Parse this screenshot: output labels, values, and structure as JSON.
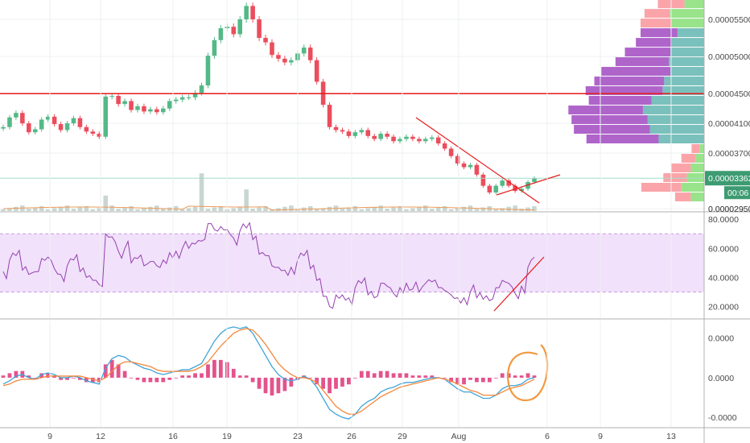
{
  "chart_data": [
    {
      "type": "candlestick",
      "panel": "price",
      "x_tick_labels": [
        "9",
        "12",
        "16",
        "19",
        "23",
        "26",
        "29",
        "Aug",
        "6",
        "9",
        "13"
      ],
      "y_ticks": [
        {
          "value": 5.5e-05,
          "label": "0.00005500"
        },
        {
          "value": 5e-05,
          "label": "0.00005000"
        },
        {
          "value": 4.5e-05,
          "label": "0.00004500"
        },
        {
          "value": 4.1e-05,
          "label": "0.00004100"
        },
        {
          "value": 3.7e-05,
          "label": "0.00003700"
        },
        {
          "value": 3.362e-05,
          "label": "0.00003362"
        },
        {
          "value": 2.95e-05,
          "label": "0.00002950"
        }
      ],
      "ylim": [
        2.92e-05,
        5.76e-05
      ],
      "last_price": {
        "value": 3.362e-05,
        "label": "0.00003362",
        "countdown": "00:06"
      },
      "horizontal_line": {
        "value": 4.5e-05,
        "color": "#e51b1b"
      },
      "close_series": [
        4.05e-05,
        4.18e-05,
        4.24e-05,
        4.1e-05,
        3.98e-05,
        4.02e-05,
        4.15e-05,
        4.19e-05,
        4.09e-05,
        4.01e-05,
        4.1e-05,
        4.17e-05,
        4.05e-05,
        3.99e-05,
        3.96e-05,
        3.92e-05,
        4.46e-05,
        4.47e-05,
        4.36e-05,
        4.4e-05,
        4.28e-05,
        4.33e-05,
        4.26e-05,
        4.29e-05,
        4.25e-05,
        4.3e-05,
        4.4e-05,
        4.42e-05,
        4.45e-05,
        4.45e-05,
        4.51e-05,
        4.61e-05,
        5.01e-05,
        5.22e-05,
        5.38e-05,
        5.4e-05,
        5.3e-05,
        5.5e-05,
        5.68e-05,
        5.5e-05,
        5.25e-05,
        5.19e-05,
        5.02e-05,
        4.97e-05,
        4.92e-05,
        4.95e-05,
        5.04e-05,
        5.12e-05,
        4.95e-05,
        4.66e-05,
        4.35e-05,
        4.05e-05,
        4.01e-05,
        3.99e-05,
        3.93e-05,
        3.98e-05,
        4.01e-05,
        3.93e-05,
        3.89e-05,
        3.96e-05,
        3.92e-05,
        3.86e-05,
        3.89e-05,
        3.92e-05,
        3.89e-05,
        3.86e-05,
        3.89e-05,
        3.91e-05,
        3.83e-05,
        3.76e-05,
        3.66e-05,
        3.56e-05,
        3.51e-05,
        3.54e-05,
        3.41e-05,
        3.26e-05,
        3.17e-05,
        3.26e-05,
        3.33e-05,
        3.26e-05,
        3.19e-05,
        3.22e-05,
        3.31e-05,
        3.36e-05
      ],
      "volume_profile": [
        {
          "price": 5.71e-05,
          "buy": 0.25,
          "sell": 0.34
        },
        {
          "price": 5.58e-05,
          "buy": 0.44,
          "sell": 0.32
        },
        {
          "price": 5.45e-05,
          "buy": 0.41,
          "sell": 0.4
        },
        {
          "price": 5.32e-05,
          "buy": 0.34,
          "sell": 0.47
        },
        {
          "price": 5.19e-05,
          "buy": 0.41,
          "sell": 0.46
        },
        {
          "price": 5.06e-05,
          "buy": 0.43,
          "sell": 0.58
        },
        {
          "price": 4.93e-05,
          "buy": 0.45,
          "sell": 0.68
        },
        {
          "price": 4.8e-05,
          "buy": 0.43,
          "sell": 0.88
        },
        {
          "price": 4.67e-05,
          "buy": 0.51,
          "sell": 0.89
        },
        {
          "price": 4.54e-05,
          "buy": 0.53,
          "sell": 0.98
        },
        {
          "price": 4.41e-05,
          "buy": 0.67,
          "sell": 0.8
        },
        {
          "price": 4.28e-05,
          "buy": 0.78,
          "sell": 0.95
        },
        {
          "price": 4.15e-05,
          "buy": 0.72,
          "sell": 0.97
        },
        {
          "price": 4.02e-05,
          "buy": 0.69,
          "sell": 0.97
        },
        {
          "price": 3.89e-05,
          "buy": 0.58,
          "sell": 0.92
        },
        {
          "price": 3.76e-05,
          "buy": 0.06,
          "sell": 0.1
        },
        {
          "price": 3.63e-05,
          "buy": 0.11,
          "sell": 0.18
        },
        {
          "price": 3.5e-05,
          "buy": 0.17,
          "sell": 0.25
        },
        {
          "price": 3.37e-05,
          "buy": 0.22,
          "sell": 0.3
        },
        {
          "price": 3.24e-05,
          "buy": 0.29,
          "sell": 0.51
        },
        {
          "price": 3.11e-05,
          "buy": 0.17,
          "sell": 0.2
        }
      ],
      "colors": {
        "up": "#53b987",
        "down": "#eb4d5c",
        "trendline": "#e51b1b",
        "volume": "#c8d6d0",
        "volume_ma": "#f09a5a",
        "profile_buy": "#6cb9b5",
        "profile_sell": "#a653c4",
        "profile_buy_outer": "#8ee07e",
        "profile_sell_outer": "#f99aa0",
        "last_price_line": "#a6dcc9"
      }
    },
    {
      "type": "line",
      "panel": "rsi",
      "y_ticks": [
        {
          "value": 80,
          "label": "80.0000"
        },
        {
          "value": 60,
          "label": "60.0000"
        },
        {
          "value": 40,
          "label": "40.0000"
        },
        {
          "value": 20,
          "label": "20.0000"
        }
      ],
      "ylim": [
        12,
        84
      ],
      "band": [
        30,
        70
      ],
      "values": [
        44,
        52,
        55,
        45,
        42,
        44,
        53,
        54,
        46,
        42,
        48,
        52,
        44,
        40,
        38,
        35,
        70,
        68,
        58,
        60,
        50,
        53,
        48,
        51,
        48,
        52,
        57,
        58,
        60,
        60,
        63,
        65,
        77,
        73,
        75,
        73,
        67,
        72,
        74,
        66,
        56,
        55,
        48,
        47,
        45,
        47,
        52,
        55,
        46,
        38,
        27,
        20,
        28,
        28,
        26,
        33,
        36,
        28,
        26,
        36,
        34,
        29,
        33,
        36,
        32,
        30,
        36,
        37,
        33,
        31,
        28,
        26,
        26,
        30,
        26,
        25,
        24,
        33,
        38,
        36,
        29,
        34,
        47,
        54
      ],
      "colors": {
        "line": "#9440ae",
        "band": "#f1e1fb",
        "trendline": "#e51b1b"
      }
    },
    {
      "type": "line",
      "panel": "macd",
      "y_ticks": [
        {
          "value": 2.5e-06,
          "label": "0.0000"
        },
        {
          "value": 0,
          "label": "0.0000"
        },
        {
          "value": -2.5e-06,
          "label": "-0.0000"
        }
      ],
      "ylim": [
        -3.1e-06,
        3.6e-06
      ],
      "series": [
        {
          "values": [
            -0.4,
            -0.2,
            0.1,
            0.2,
            0.0,
            -0.1,
            0.2,
            0.3,
            0.2,
            0.0,
            0.0,
            0.1,
            0.0,
            -0.2,
            -0.3,
            -0.4,
            0.6,
            1.2,
            1.4,
            1.3,
            1.0,
            0.8,
            0.6,
            0.5,
            0.3,
            0.2,
            0.3,
            0.4,
            0.5,
            0.5,
            0.7,
            0.9,
            1.6,
            2.3,
            2.8,
            3.1,
            3.2,
            3.1,
            3.2,
            2.8,
            2.1,
            1.4,
            0.7,
            0.2,
            -0.1,
            -0.2,
            -0.1,
            0.1,
            -0.1,
            -0.6,
            -1.3,
            -2.0,
            -2.3,
            -2.5,
            -2.6,
            -2.3,
            -1.8,
            -1.5,
            -1.3,
            -0.9,
            -0.7,
            -0.6,
            -0.4,
            -0.3,
            -0.3,
            -0.2,
            -0.1,
            0.0,
            0.0,
            -0.1,
            -0.4,
            -0.7,
            -0.9,
            -0.9,
            -1.1,
            -1.3,
            -1.3,
            -1.1,
            -0.7,
            -0.5,
            -0.5,
            -0.4,
            -0.1,
            0.0
          ],
          "color": "#3fa3d9"
        },
        {
          "values": [
            -0.5,
            -0.4,
            -0.2,
            -0.1,
            -0.1,
            -0.1,
            0.0,
            0.1,
            0.1,
            0.1,
            0.1,
            0.1,
            0.1,
            0.0,
            -0.1,
            -0.2,
            0.0,
            0.4,
            0.8,
            1.0,
            1.0,
            0.9,
            0.8,
            0.7,
            0.5,
            0.4,
            0.4,
            0.4,
            0.4,
            0.4,
            0.5,
            0.7,
            1.0,
            1.5,
            2.0,
            2.4,
            2.8,
            3.0,
            3.1,
            3.0,
            2.6,
            2.1,
            1.5,
            0.9,
            0.5,
            0.2,
            0.0,
            0.0,
            -0.1,
            -0.3,
            -0.8,
            -1.3,
            -1.8,
            -2.1,
            -2.3,
            -2.3,
            -2.1,
            -1.8,
            -1.5,
            -1.2,
            -1.0,
            -0.8,
            -0.6,
            -0.5,
            -0.4,
            -0.3,
            -0.2,
            -0.1,
            0.0,
            -0.1,
            -0.2,
            -0.4,
            -0.6,
            -0.8,
            -0.9,
            -1.1,
            -1.1,
            -1.1,
            -0.9,
            -0.7,
            -0.6,
            -0.5,
            -0.3,
            -0.1
          ],
          "color": "#f5873b"
        }
      ],
      "histogram_color_up": "#e3538c",
      "histogram_color_down": "#e3538c",
      "annotation_color": "#f2993f"
    }
  ]
}
